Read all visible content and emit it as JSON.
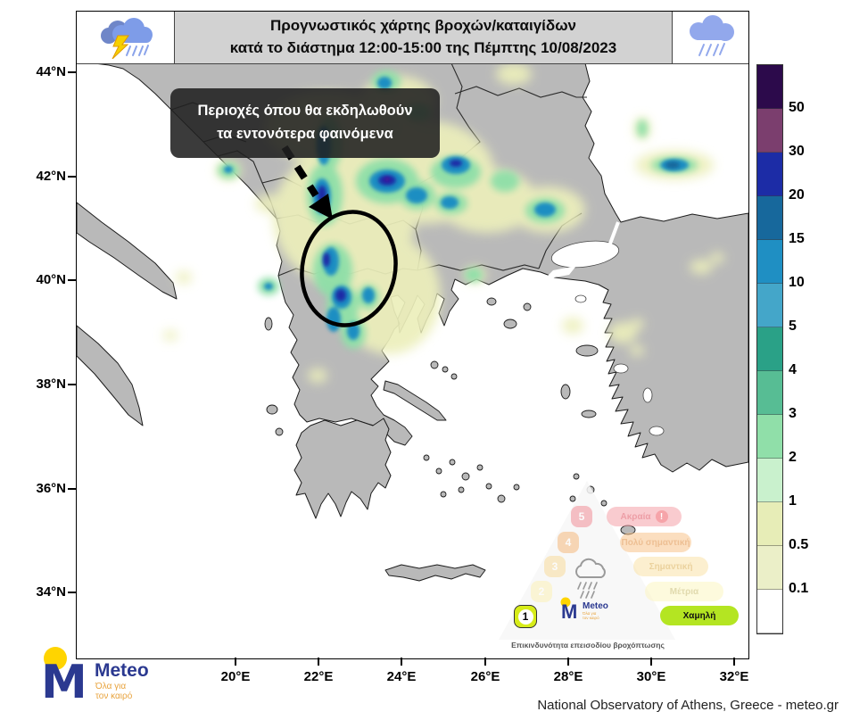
{
  "header": {
    "title_line1": "Προγνωστικός χάρτης βροχών/καταιγίδων",
    "title_line2": "κατά το διάστημα 12:00-15:00 της Πέμπτης 10/08/2023",
    "left_icon": "storm-cloud-lightning-rain",
    "right_icon": "rain-cloud"
  },
  "annotation": {
    "line1": "Περιοχές όπου θα εκδηλωθούν",
    "line2": "τα εντονότερα φαινόμενα"
  },
  "axes": {
    "lat_ticks": [
      "44°N",
      "42°N",
      "40°N",
      "38°N",
      "36°N",
      "34°N"
    ],
    "lon_ticks": [
      "20°E",
      "22°E",
      "24°E",
      "26°E",
      "28°E",
      "30°E",
      "32°E"
    ]
  },
  "colorbar": {
    "labels": [
      "50",
      "30",
      "20",
      "15",
      "10",
      "5",
      "4",
      "3",
      "2",
      "1",
      "0.5",
      "0.1"
    ],
    "colors": [
      "#2c0a4b",
      "#7b3e6e",
      "#1c2ca6",
      "#17689c",
      "#1f8fc3",
      "#44a6c9",
      "#2aa187",
      "#57bd94",
      "#90dfa9",
      "#c9f1cd",
      "#e7edb7",
      "#ebefc8",
      "#ffffff"
    ]
  },
  "hazard_pyramid": {
    "caption": "Επικινδυνότητα επεισοδίου βροχόπτωσης",
    "logo_text": "Meteo",
    "levels": [
      {
        "num": "5",
        "label": "Ακραία",
        "pill_color": "#f5a2a9",
        "badge_color": "#f19098",
        "text_color": "#e0505e",
        "active": false,
        "alert": true
      },
      {
        "num": "4",
        "label": "Πολύ σημαντική",
        "pill_color": "#f8c48c",
        "badge_color": "#f6b97e",
        "text_color": "#e08b3c",
        "active": false,
        "alert": false
      },
      {
        "num": "3",
        "label": "Σημαντική",
        "pill_color": "#fae3a8",
        "badge_color": "#f9dc9c",
        "text_color": "#dcae4f",
        "active": false,
        "alert": false
      },
      {
        "num": "2",
        "label": "Μέτρια",
        "pill_color": "#fdf6c2",
        "badge_color": "#fcf2b8",
        "text_color": "#c9bd6c",
        "active": false,
        "alert": false
      },
      {
        "num": "1",
        "label": "Χαμηλή",
        "pill_color": "#b4e522",
        "badge_color": "#d7ec19",
        "text_color": "#111111",
        "active": true,
        "alert": false
      }
    ]
  },
  "brand_logo": {
    "text": "Meteo",
    "tagline_line1": "Όλα για",
    "tagline_line2": "τον καιρό",
    "blue": "#2b3990",
    "yellow": "#ffd400",
    "orange": "#e8a33d"
  },
  "footer": {
    "credit": "National Observatory of Athens, Greece - meteo.gr"
  }
}
